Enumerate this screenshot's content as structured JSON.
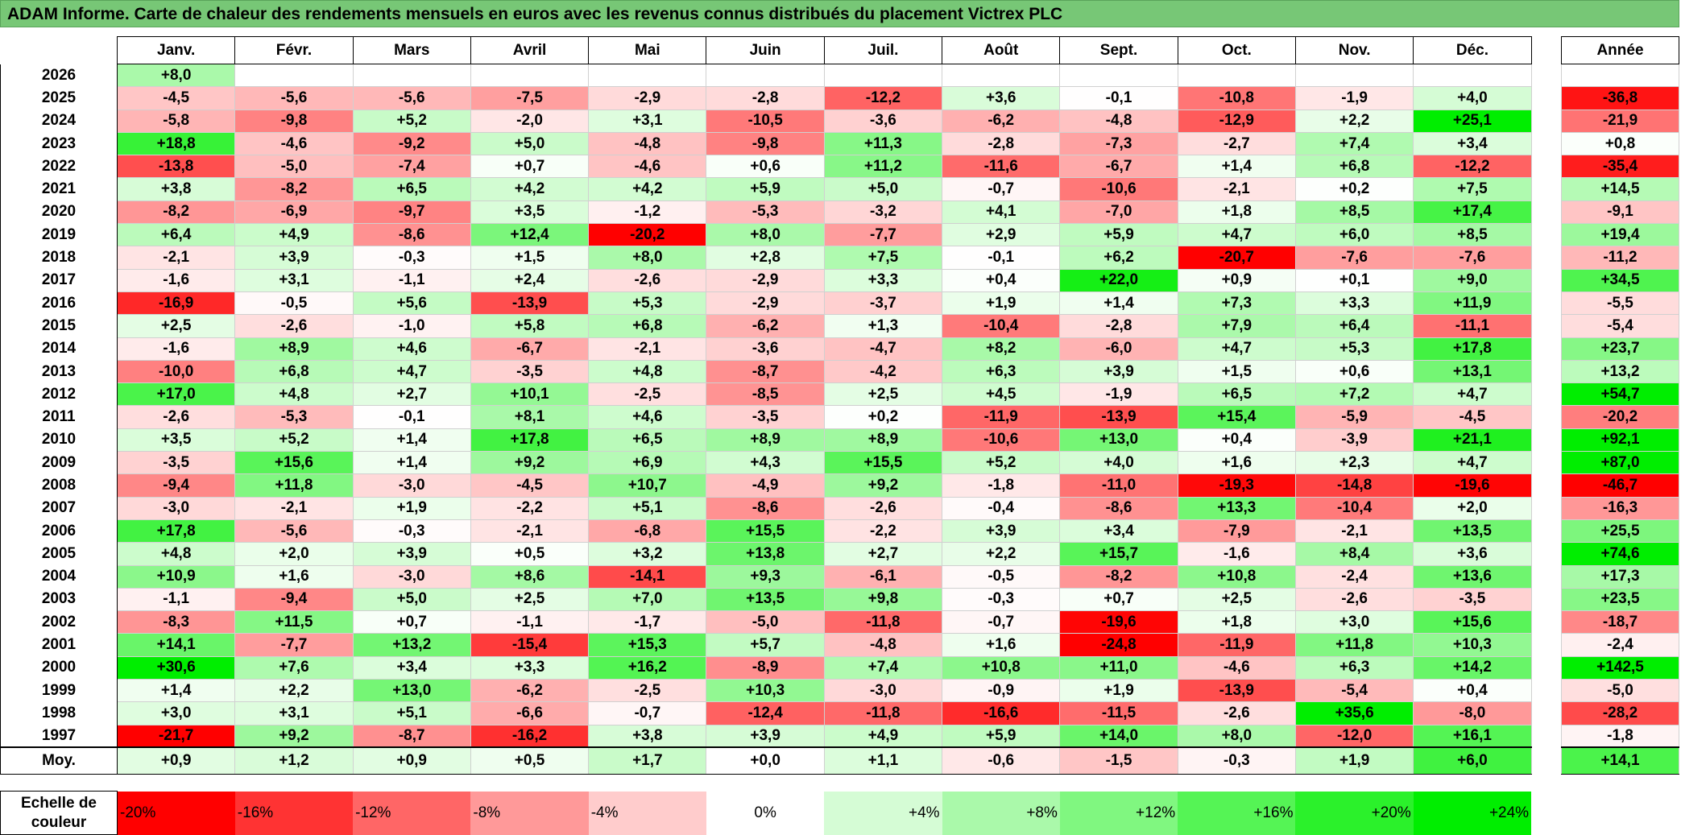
{
  "title": "ADAM Informe. Carte de chaleur des rendements mensuels en euros avec les revenus connus distribués du placement Victrex PLC",
  "colors": {
    "title_bg": "#77c776",
    "neg_max": "#ff0000",
    "pos_max": "#00ee00",
    "zero": "#ffffff"
  },
  "chart_data": {
    "type": "heatmap",
    "title": "ADAM Informe. Carte de chaleur des rendements mensuels en euros avec les revenus connus distribués du placement Victrex PLC",
    "months": [
      "Janv.",
      "Févr.",
      "Mars",
      "Avril",
      "Mai",
      "Juin",
      "Juil.",
      "Août",
      "Sept.",
      "Oct.",
      "Nov.",
      "Déc."
    ],
    "year_col_header": "Année",
    "rows": [
      {
        "year": "2026",
        "m": [
          "+8,0",
          "",
          "",
          "",
          "",
          "",
          "",
          "",
          "",
          "",
          "",
          ""
        ],
        "y": ""
      },
      {
        "year": "2025",
        "m": [
          "-4,5",
          "-5,6",
          "-5,6",
          "-7,5",
          "-2,9",
          "-2,8",
          "-12,2",
          "+3,6",
          "-0,1",
          "-10,8",
          "-1,9",
          "+4,0"
        ],
        "y": "-36,8"
      },
      {
        "year": "2024",
        "m": [
          "-5,8",
          "-9,8",
          "+5,2",
          "-2,0",
          "+3,1",
          "-10,5",
          "-3,6",
          "-6,2",
          "-4,8",
          "-12,9",
          "+2,2",
          "+25,1"
        ],
        "y": "-21,9"
      },
      {
        "year": "2023",
        "m": [
          "+18,8",
          "-4,6",
          "-9,2",
          "+5,0",
          "-4,8",
          "-9,8",
          "+11,3",
          "-2,8",
          "-7,3",
          "-2,7",
          "+7,4",
          "+3,4"
        ],
        "y": "+0,8"
      },
      {
        "year": "2022",
        "m": [
          "-13,8",
          "-5,0",
          "-7,4",
          "+0,7",
          "-4,6",
          "+0,6",
          "+11,2",
          "-11,6",
          "-6,7",
          "+1,4",
          "+6,8",
          "-12,2"
        ],
        "y": "-35,4"
      },
      {
        "year": "2021",
        "m": [
          "+3,8",
          "-8,2",
          "+6,5",
          "+4,2",
          "+4,2",
          "+5,9",
          "+5,0",
          "-0,7",
          "-10,6",
          "-2,1",
          "+0,2",
          "+7,5"
        ],
        "y": "+14,5"
      },
      {
        "year": "2020",
        "m": [
          "-8,2",
          "-6,9",
          "-9,7",
          "+3,5",
          "-1,2",
          "-5,3",
          "-3,2",
          "+4,1",
          "-7,0",
          "+1,8",
          "+8,5",
          "+17,4"
        ],
        "y": "-9,1"
      },
      {
        "year": "2019",
        "m": [
          "+6,4",
          "+4,9",
          "-8,6",
          "+12,4",
          "-20,2",
          "+8,0",
          "-7,7",
          "+2,9",
          "+5,9",
          "+4,7",
          "+6,0",
          "+8,5"
        ],
        "y": "+19,4"
      },
      {
        "year": "2018",
        "m": [
          "-2,1",
          "+3,9",
          "-0,3",
          "+1,5",
          "+8,0",
          "+2,8",
          "+7,5",
          "-0,1",
          "+6,2",
          "-20,7",
          "-7,6",
          "-7,6"
        ],
        "y": "-11,2"
      },
      {
        "year": "2017",
        "m": [
          "-1,6",
          "+3,1",
          "-1,1",
          "+2,4",
          "-2,6",
          "-2,9",
          "+3,3",
          "+0,4",
          "+22,0",
          "+0,9",
          "+0,1",
          "+9,0"
        ],
        "y": "+34,5"
      },
      {
        "year": "2016",
        "m": [
          "-16,9",
          "-0,5",
          "+5,6",
          "-13,9",
          "+5,3",
          "-2,9",
          "-3,7",
          "+1,9",
          "+1,4",
          "+7,3",
          "+3,3",
          "+11,9"
        ],
        "y": "-5,5"
      },
      {
        "year": "2015",
        "m": [
          "+2,5",
          "-2,6",
          "-1,0",
          "+5,8",
          "+6,8",
          "-6,2",
          "+1,3",
          "-10,4",
          "-2,8",
          "+7,9",
          "+6,4",
          "-11,1"
        ],
        "y": "-5,4"
      },
      {
        "year": "2014",
        "m": [
          "-1,6",
          "+8,9",
          "+4,6",
          "-6,7",
          "-2,1",
          "-3,6",
          "-4,7",
          "+8,2",
          "-6,0",
          "+4,7",
          "+5,3",
          "+17,8"
        ],
        "y": "+23,7"
      },
      {
        "year": "2013",
        "m": [
          "-10,0",
          "+6,8",
          "+4,7",
          "-3,5",
          "+4,8",
          "-8,7",
          "-4,2",
          "+6,3",
          "+3,9",
          "+1,5",
          "+0,6",
          "+13,1"
        ],
        "y": "+13,2"
      },
      {
        "year": "2012",
        "m": [
          "+17,0",
          "+4,8",
          "+2,7",
          "+10,1",
          "-2,5",
          "-8,5",
          "+2,5",
          "+4,5",
          "-1,9",
          "+6,5",
          "+7,2",
          "+4,7"
        ],
        "y": "+54,7"
      },
      {
        "year": "2011",
        "m": [
          "-2,6",
          "-5,3",
          "-0,1",
          "+8,1",
          "+4,6",
          "-3,5",
          "+0,2",
          "-11,9",
          "-13,9",
          "+15,4",
          "-5,9",
          "-4,5"
        ],
        "y": "-20,2"
      },
      {
        "year": "2010",
        "m": [
          "+3,5",
          "+5,2",
          "+1,4",
          "+17,8",
          "+6,5",
          "+8,9",
          "+8,9",
          "-10,6",
          "+13,0",
          "+0,4",
          "-3,9",
          "+21,1"
        ],
        "y": "+92,1"
      },
      {
        "year": "2009",
        "m": [
          "-3,5",
          "+15,6",
          "+1,4",
          "+9,2",
          "+6,9",
          "+4,3",
          "+15,5",
          "+5,2",
          "+4,0",
          "+1,6",
          "+2,3",
          "+4,7"
        ],
        "y": "+87,0"
      },
      {
        "year": "2008",
        "m": [
          "-9,4",
          "+11,8",
          "-3,0",
          "-4,5",
          "+10,7",
          "-4,9",
          "+9,2",
          "-1,8",
          "-11,0",
          "-19,3",
          "-14,8",
          "-19,6"
        ],
        "y": "-46,7"
      },
      {
        "year": "2007",
        "m": [
          "-3,0",
          "-2,1",
          "+1,9",
          "-2,2",
          "+5,1",
          "-8,6",
          "-2,6",
          "-0,4",
          "-8,6",
          "+13,3",
          "-10,4",
          "+2,0"
        ],
        "y": "-16,3"
      },
      {
        "year": "2006",
        "m": [
          "+17,8",
          "-5,6",
          "-0,3",
          "-2,1",
          "-6,8",
          "+15,5",
          "-2,2",
          "+3,9",
          "+3,4",
          "-7,9",
          "-2,1",
          "+13,5"
        ],
        "y": "+25,5"
      },
      {
        "year": "2005",
        "m": [
          "+4,8",
          "+2,0",
          "+3,9",
          "+0,5",
          "+3,2",
          "+13,8",
          "+2,7",
          "+2,2",
          "+15,7",
          "-1,6",
          "+8,4",
          "+3,6"
        ],
        "y": "+74,6"
      },
      {
        "year": "2004",
        "m": [
          "+10,9",
          "+1,6",
          "-3,0",
          "+8,6",
          "-14,1",
          "+9,3",
          "-6,1",
          "-0,5",
          "-8,2",
          "+10,8",
          "-2,4",
          "+13,6"
        ],
        "y": "+17,3"
      },
      {
        "year": "2003",
        "m": [
          "-1,1",
          "-9,4",
          "+5,0",
          "+2,5",
          "+7,0",
          "+13,5",
          "+9,8",
          "-0,3",
          "+0,7",
          "+2,5",
          "-2,6",
          "-3,5"
        ],
        "y": "+23,5"
      },
      {
        "year": "2002",
        "m": [
          "-8,3",
          "+11,5",
          "+0,7",
          "-1,1",
          "-1,7",
          "-5,0",
          "-11,8",
          "-0,7",
          "-19,6",
          "+1,8",
          "+3,0",
          "+15,6"
        ],
        "y": "-18,7"
      },
      {
        "year": "2001",
        "m": [
          "+14,1",
          "-7,7",
          "+13,2",
          "-15,4",
          "+15,3",
          "+5,7",
          "-4,8",
          "+1,6",
          "-24,8",
          "-11,9",
          "+11,8",
          "+10,3"
        ],
        "y": "-2,4"
      },
      {
        "year": "2000",
        "m": [
          "+30,6",
          "+7,6",
          "+3,4",
          "+3,3",
          "+16,2",
          "-8,9",
          "+7,4",
          "+10,8",
          "+11,0",
          "-4,6",
          "+6,3",
          "+14,2"
        ],
        "y": "+142,5"
      },
      {
        "year": "1999",
        "m": [
          "+1,4",
          "+2,2",
          "+13,0",
          "-6,2",
          "-2,5",
          "+10,3",
          "-3,0",
          "-0,9",
          "+1,9",
          "-13,9",
          "-5,4",
          "+0,4"
        ],
        "y": "-5,0"
      },
      {
        "year": "1998",
        "m": [
          "+3,0",
          "+3,1",
          "+5,1",
          "-6,6",
          "-0,7",
          "-12,4",
          "-11,8",
          "-16,6",
          "-11,5",
          "-2,6",
          "+35,6",
          "-8,0"
        ],
        "y": "-28,2"
      },
      {
        "year": "1997",
        "m": [
          "-21,7",
          "+9,2",
          "-8,7",
          "-16,2",
          "+3,8",
          "+3,9",
          "+4,9",
          "+5,9",
          "+14,0",
          "+8,0",
          "-12,0",
          "+16,1"
        ],
        "y": "-1,8"
      }
    ],
    "avg": {
      "label": "Moy.",
      "m": [
        "+0,9",
        "+1,2",
        "+0,9",
        "+0,5",
        "+1,7",
        "+0,0",
        "+1,1",
        "-0,6",
        "-1,5",
        "-0,3",
        "+1,9",
        "+6,0"
      ],
      "y": "+14,1"
    },
    "scale": {
      "label": "Echelle de couleur",
      "steps": [
        {
          "text": "-20%",
          "v": -20
        },
        {
          "text": "-16%",
          "v": -16
        },
        {
          "text": "-12%",
          "v": -12
        },
        {
          "text": "-8%",
          "v": -8
        },
        {
          "text": "-4%",
          "v": -4
        },
        {
          "text": "0%",
          "v": 0
        },
        {
          "text": "+4%",
          "v": 4
        },
        {
          "text": "+8%",
          "v": 8
        },
        {
          "text": "+12%",
          "v": 12
        },
        {
          "text": "+16%",
          "v": 16
        },
        {
          "text": "+20%",
          "v": 20
        },
        {
          "text": "+24%",
          "v": 24
        }
      ]
    }
  }
}
